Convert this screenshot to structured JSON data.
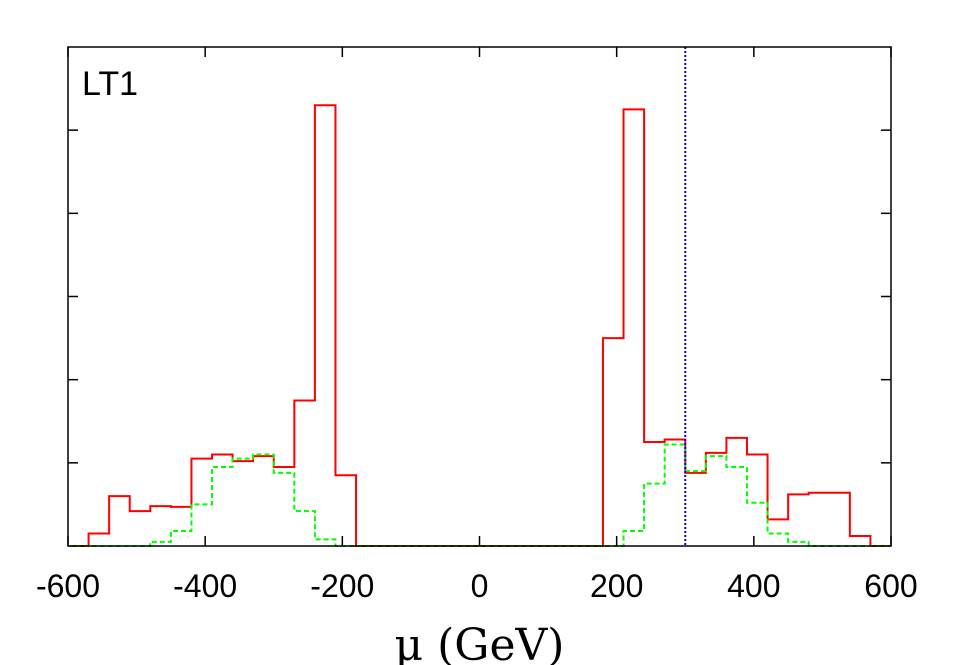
{
  "chart_data": {
    "type": "histogram",
    "panel_label": "LT1",
    "xlabel": "μ (GeV)",
    "ylabel": "",
    "xlim": [
      -600,
      600
    ],
    "ylim": [
      0,
      6
    ],
    "x_ticks": [
      -600,
      -400,
      -200,
      0,
      200,
      400,
      600
    ],
    "y_ticks": [
      1,
      2,
      3,
      4,
      5
    ],
    "reference_line": {
      "x": 300,
      "color": "#0000ff",
      "style": "dotted"
    },
    "series": [
      {
        "color": "#ff0000",
        "style": "solid",
        "steps": [
          [
            -600,
            0
          ],
          [
            -570,
            0.15
          ],
          [
            -540,
            0.6
          ],
          [
            -510,
            0.42
          ],
          [
            -480,
            0.48
          ],
          [
            -450,
            0.47
          ],
          [
            -420,
            1.05
          ],
          [
            -390,
            1.1
          ],
          [
            -360,
            1.02
          ],
          [
            -330,
            1.08
          ],
          [
            -300,
            0.95
          ],
          [
            -270,
            1.75
          ],
          [
            -240,
            5.3
          ],
          [
            -210,
            0.85
          ],
          [
            -180,
            0
          ],
          [
            180,
            2.5
          ],
          [
            210,
            5.25
          ],
          [
            240,
            1.25
          ],
          [
            270,
            1.28
          ],
          [
            300,
            0.88
          ],
          [
            330,
            1.12
          ],
          [
            360,
            1.3
          ],
          [
            390,
            1.1
          ],
          [
            420,
            0.32
          ],
          [
            450,
            0.62
          ],
          [
            480,
            0.64
          ],
          [
            540,
            0.12
          ],
          [
            570,
            0
          ],
          [
            600,
            0
          ]
        ]
      },
      {
        "color": "#00ff00",
        "style": "dashed",
        "steps": [
          [
            -600,
            0
          ],
          [
            -480,
            0.05
          ],
          [
            -450,
            0.18
          ],
          [
            -420,
            0.5
          ],
          [
            -390,
            0.95
          ],
          [
            -360,
            1.05
          ],
          [
            -330,
            1.1
          ],
          [
            -300,
            0.88
          ],
          [
            -270,
            0.42
          ],
          [
            -240,
            0.08
          ],
          [
            -210,
            0
          ],
          [
            210,
            0.18
          ],
          [
            240,
            0.75
          ],
          [
            270,
            1.22
          ],
          [
            300,
            0.9
          ],
          [
            330,
            1.08
          ],
          [
            360,
            0.95
          ],
          [
            390,
            0.52
          ],
          [
            420,
            0.15
          ],
          [
            450,
            0.05
          ],
          [
            480,
            0
          ],
          [
            600,
            0
          ]
        ]
      }
    ]
  }
}
